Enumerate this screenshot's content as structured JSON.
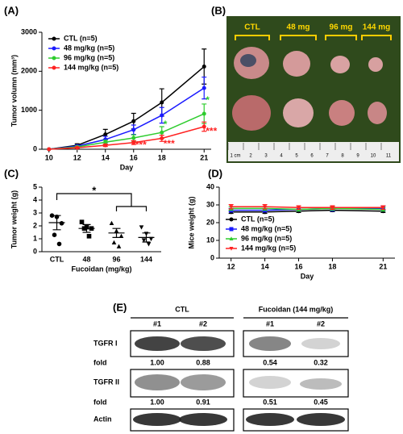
{
  "chart_data": [
    {
      "type": "line",
      "panel_label": "(A)",
      "x_label": "Day",
      "y_label": "Tumor volumn (mm³)",
      "x": [
        10,
        12,
        14,
        16,
        18,
        21
      ],
      "xlim": [
        9.5,
        21.5
      ],
      "xticks": [
        10,
        12,
        14,
        16,
        18,
        21
      ],
      "ylim": [
        0,
        3000
      ],
      "yticks": [
        0,
        1000,
        2000,
        3000
      ],
      "legend": "upper left",
      "series": [
        {
          "name": "CTL (n=5)",
          "color": "#000000",
          "marker": "circle",
          "values": [
            0,
            100,
            380,
            720,
            1200,
            2120
          ],
          "errors": [
            0,
            40,
            130,
            200,
            350,
            450
          ]
        },
        {
          "name": "48 mg/kg (n=5)",
          "color": "#1a1aff",
          "marker": "circle",
          "values": [
            0,
            80,
            250,
            500,
            870,
            1570
          ],
          "errors": [
            0,
            30,
            80,
            120,
            200,
            280
          ]
        },
        {
          "name": "96 mg/kg (n=5)",
          "color": "#2ecc2e",
          "marker": "circle",
          "values": [
            0,
            60,
            180,
            290,
            430,
            910
          ],
          "errors": [
            0,
            20,
            50,
            80,
            150,
            250
          ]
        },
        {
          "name": "144 mg/kg (n=5)",
          "color": "#ff2222",
          "marker": "circle",
          "values": [
            0,
            40,
            100,
            170,
            280,
            580
          ],
          "errors": [
            0,
            15,
            30,
            50,
            80,
            120
          ]
        }
      ],
      "annotations": [
        {
          "text": "*",
          "x": 18,
          "y": 620,
          "color": "#2ecc2e"
        },
        {
          "text": "*",
          "x": 21,
          "y": 1250,
          "color": "#2ecc2e"
        },
        {
          "text": "***",
          "x": 16,
          "y": 100,
          "color": "#ff2222"
        },
        {
          "text": "***",
          "x": 18,
          "y": 130,
          "color": "#ff2222"
        },
        {
          "text": "***",
          "x": 21,
          "y": 450,
          "color": "#ff2222"
        }
      ]
    },
    {
      "type": "strip",
      "panel_label": "(C)",
      "x_label": "Fucoidan (mg/kg)",
      "y_label": "Tumor weight (g)",
      "categories": [
        "CTL",
        "48",
        "96",
        "144"
      ],
      "ylim": [
        0,
        5
      ],
      "yticks": [
        0,
        1,
        2,
        3,
        4,
        5
      ],
      "color": "#000000",
      "markers": [
        "circle",
        "square",
        "triangle",
        "triangle-down"
      ],
      "points": [
        [
          2.8,
          2.7,
          2.2,
          1.3,
          0.6
        ],
        [
          2.3,
          1.9,
          1.8,
          1.8,
          1.2
        ],
        [
          2.2,
          1.6,
          1.2,
          0.7,
          0.4
        ],
        [
          1.9,
          1.4,
          1.0,
          0.9,
          0.6
        ]
      ],
      "means": [
        2.25,
        1.8,
        1.45,
        1.1
      ],
      "errors": [
        0.55,
        0.3,
        0.35,
        0.35
      ],
      "annotations": [
        {
          "text": "*"
        }
      ]
    },
    {
      "type": "line",
      "panel_label": "(D)",
      "x_label": "Day",
      "y_label": "Mice weight (g)",
      "x": [
        12,
        14,
        16,
        18,
        21
      ],
      "xlim": [
        11.3,
        21.7
      ],
      "xticks": [
        12,
        14,
        16,
        18,
        21
      ],
      "ylim": [
        0,
        40
      ],
      "yticks": [
        0,
        10,
        20,
        30,
        40
      ],
      "legend": "center left",
      "series": [
        {
          "name": "CTL (n=5)",
          "color": "#000000",
          "marker": "circle",
          "values": [
            26,
            26,
            26.5,
            27,
            26.5
          ],
          "errors": [
            0.8,
            0.8,
            0.8,
            0.8,
            0.8
          ]
        },
        {
          "name": "48 mg/kg (n=5)",
          "color": "#1a1aff",
          "marker": "square",
          "values": [
            27,
            27,
            27.5,
            28,
            28
          ],
          "errors": [
            1,
            1,
            1,
            1.5,
            1.5
          ]
        },
        {
          "name": "96 mg/kg (n=5)",
          "color": "#2ecc2e",
          "marker": "triangle",
          "values": [
            28,
            28,
            27.5,
            28,
            27.5
          ],
          "errors": [
            1,
            1,
            1,
            1,
            1
          ]
        },
        {
          "name": "144 mg/kg (n=5)",
          "color": "#ff2222",
          "marker": "triangle-down",
          "values": [
            29,
            29,
            28.5,
            28.5,
            28.5
          ],
          "errors": [
            1.2,
            1.2,
            1,
            1,
            1
          ]
        }
      ]
    }
  ],
  "photo": {
    "panel_label": "(B)",
    "labels": [
      "CTL",
      "48 mg",
      "96 mg",
      "144 mg"
    ],
    "ruler": [
      "1 cm",
      "2",
      "3",
      "4",
      "5",
      "6",
      "7",
      "8",
      "9",
      "10",
      "11"
    ]
  },
  "blot": {
    "panel_label": "(E)",
    "groups": [
      "CTL",
      "Fucoidan (144 mg/kg)"
    ],
    "lanes": [
      "#1",
      "#2",
      "#1",
      "#2"
    ],
    "rows": [
      {
        "label": "TGFR I",
        "fold_label": "fold",
        "fold": [
          "1.00",
          "0.88",
          "0.54",
          "0.32"
        ]
      },
      {
        "label": "TGFR II",
        "fold_label": "fold",
        "fold": [
          "1.00",
          "0.91",
          "0.51",
          "0.45"
        ]
      },
      {
        "label": "Actin"
      }
    ]
  }
}
